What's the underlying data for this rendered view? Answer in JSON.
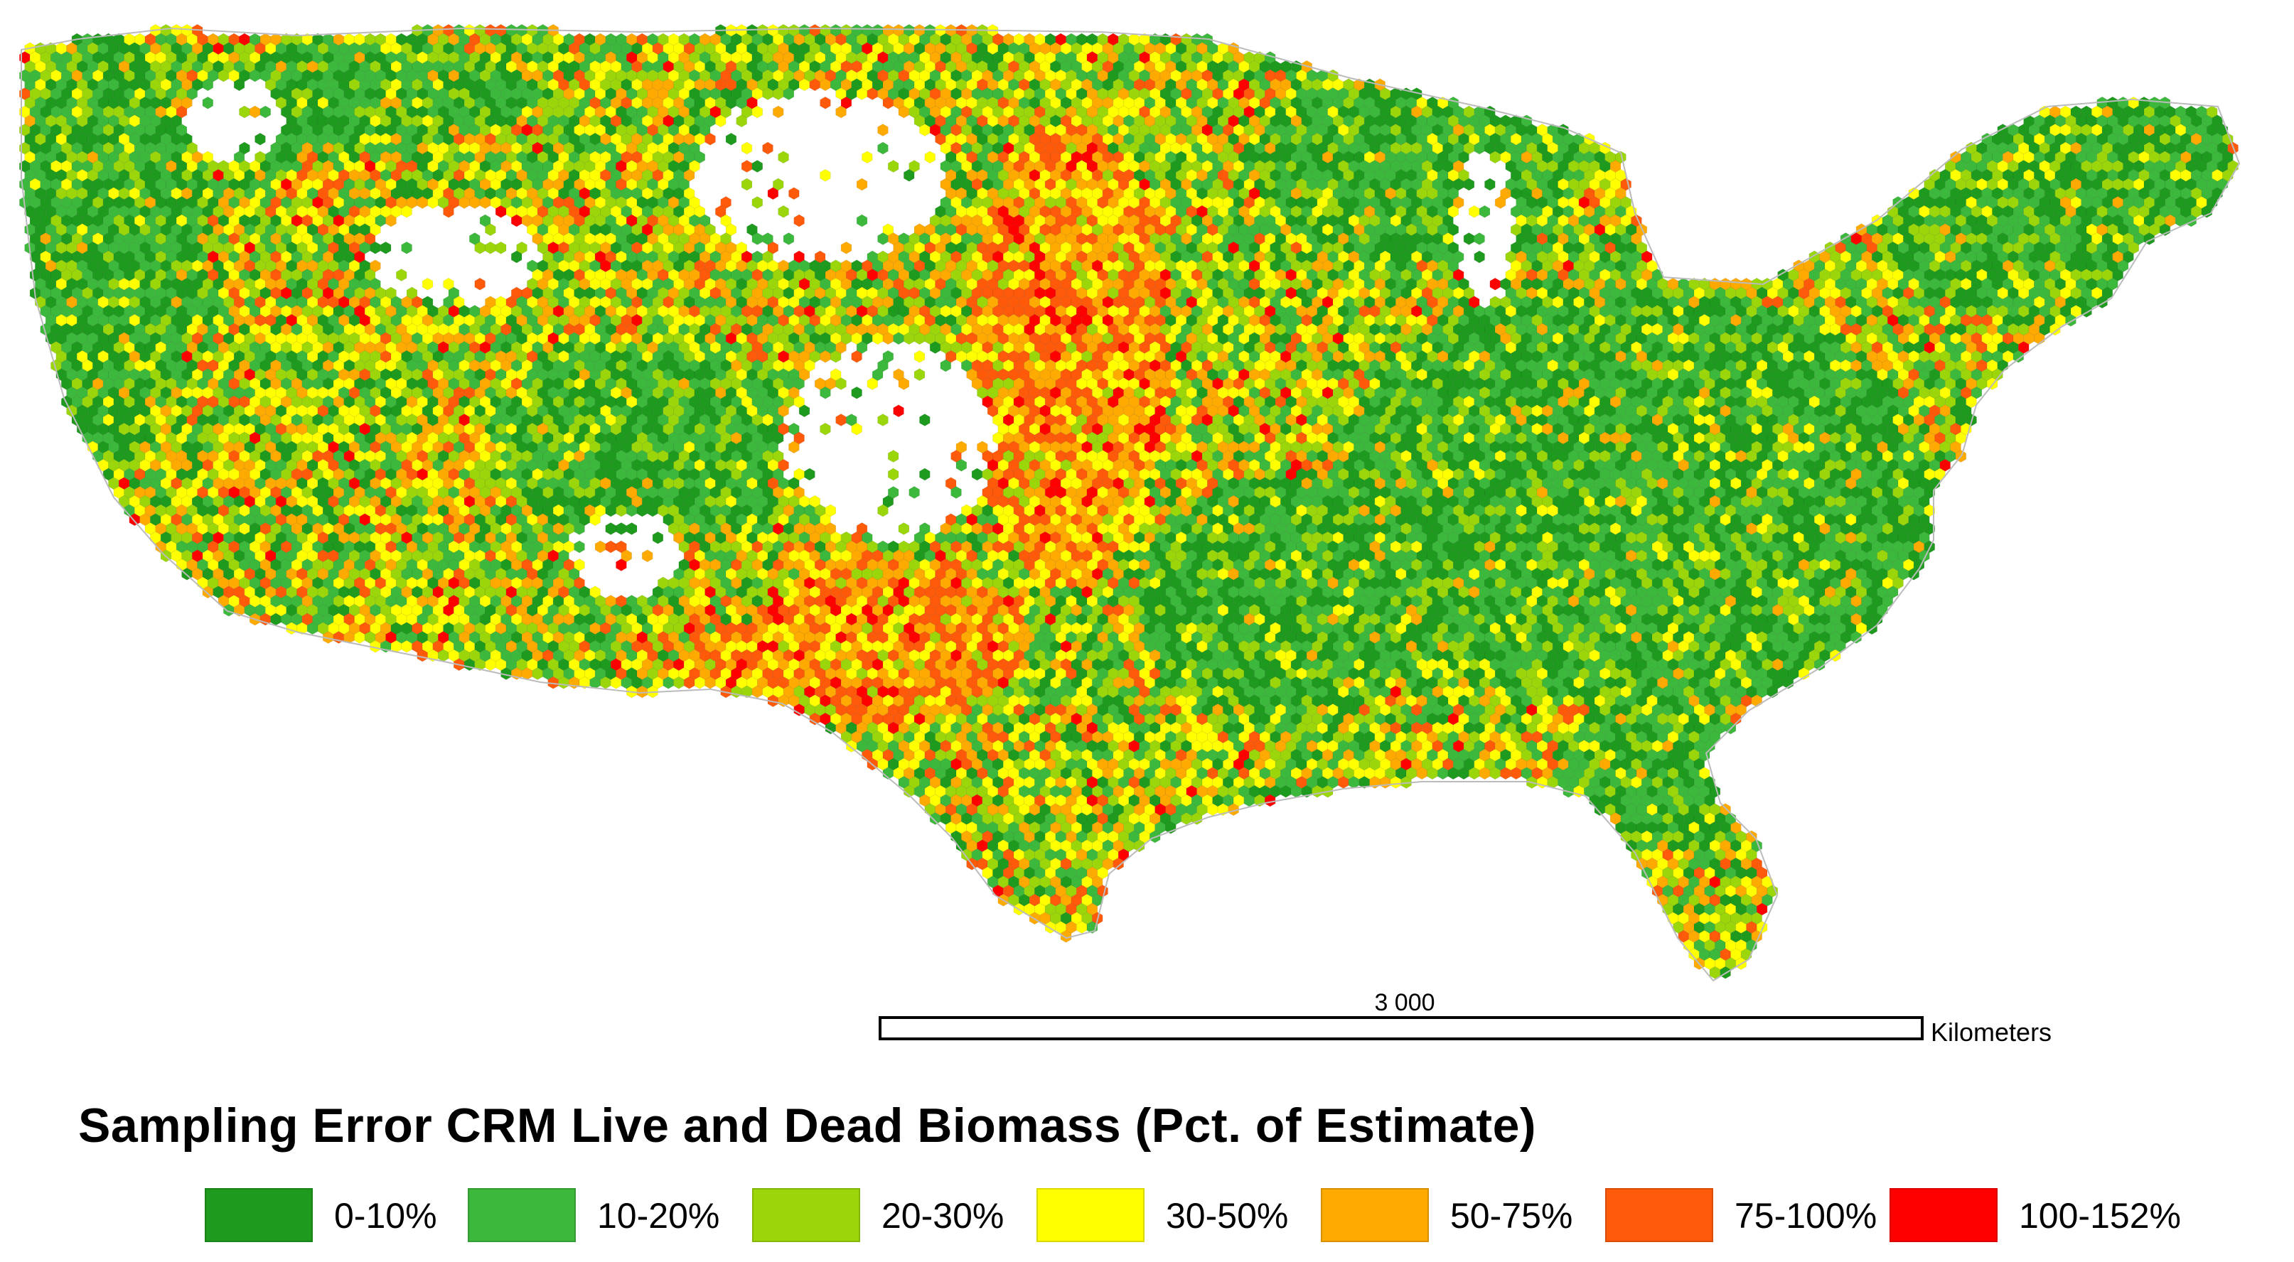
{
  "map": {
    "title": "Sampling Error CRM Live and Dead Biomass (Pct. of Estimate)",
    "region": "conterminous United States",
    "symbology": "hexagonal grid cells",
    "scale_bar": {
      "distance": "3 000",
      "unit": "Kilometers"
    },
    "legend": [
      {
        "label": "0-10%",
        "color": "#1e9a1e"
      },
      {
        "label": "10-20%",
        "color": "#3cb83c"
      },
      {
        "label": "20-30%",
        "color": "#9ad60a"
      },
      {
        "label": "30-50%",
        "color": "#ffff00"
      },
      {
        "label": "50-75%",
        "color": "#ffaa00"
      },
      {
        "label": "75-100%",
        "color": "#ff5a0a"
      },
      {
        "label": "100-152%",
        "color": "#ff0000"
      }
    ]
  }
}
